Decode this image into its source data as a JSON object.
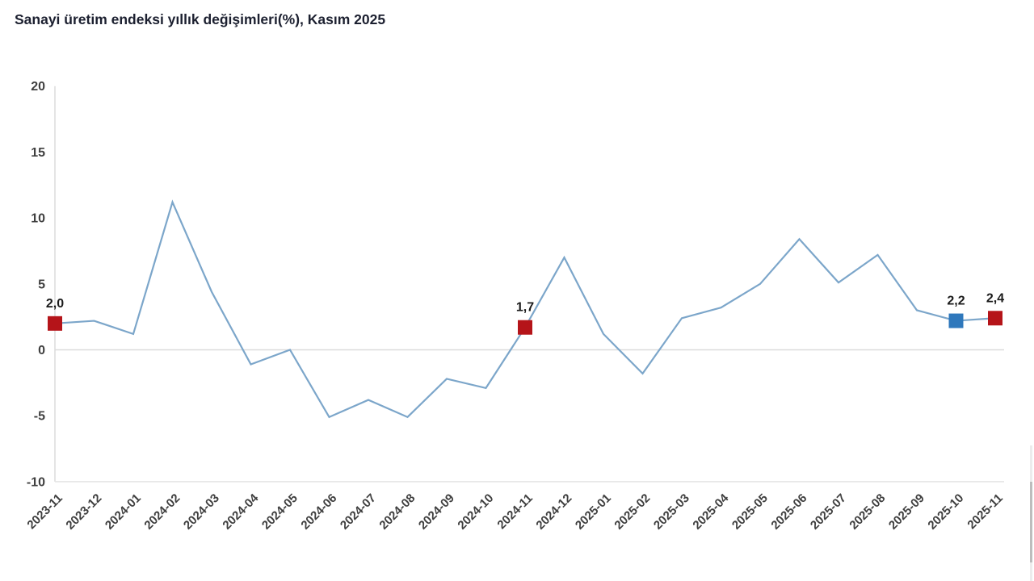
{
  "title": "Sanayi üretim endeksi yıllık değişimleri(%), Kasım 2025",
  "chart_data": {
    "type": "line",
    "title": "Sanayi üretim endeksi yıllık değişimleri(%), Kasım 2025",
    "categories": [
      "2023-11",
      "2023-12",
      "2024-01",
      "2024-02",
      "2024-03",
      "2024-04",
      "2024-05",
      "2024-06",
      "2024-07",
      "2024-08",
      "2024-09",
      "2024-10",
      "2024-11",
      "2024-12",
      "2025-01",
      "2025-02",
      "2025-03",
      "2025-04",
      "2025-05",
      "2025-06",
      "2025-07",
      "2025-08",
      "2025-09",
      "2025-10",
      "2025-11"
    ],
    "values": [
      2.0,
      2.2,
      1.2,
      11.2,
      4.4,
      -1.1,
      0.0,
      -5.1,
      -3.8,
      -5.1,
      -2.2,
      -2.9,
      1.7,
      7.0,
      1.2,
      -1.8,
      2.4,
      3.2,
      5.0,
      8.4,
      5.1,
      7.2,
      3.0,
      2.2,
      2.4
    ],
    "y_ticks": [
      20,
      15,
      10,
      5,
      0,
      -5,
      -10
    ],
    "ylim": [
      -10,
      20
    ],
    "xlabel": "",
    "ylabel": "",
    "legend": "none",
    "grid": "zero-line-only",
    "x_label_rotation_deg": -45,
    "line_color": "#7ca6ca",
    "axis_color": "#dcdcdc",
    "tick_label_color": "#3f3f3f",
    "data_label_color": "#1a1a1a",
    "annotated_points": [
      {
        "category": "2023-11",
        "value": 2.0,
        "label": "2,0",
        "marker": "square",
        "marker_color": "#b51419"
      },
      {
        "category": "2024-11",
        "value": 1.7,
        "label": "1,7",
        "marker": "square",
        "marker_color": "#b51419"
      },
      {
        "category": "2025-10",
        "value": 2.2,
        "label": "2,2",
        "marker": "square",
        "marker_color": "#2f78bc"
      },
      {
        "category": "2025-11",
        "value": 2.4,
        "label": "2,4",
        "marker": "square",
        "marker_color": "#b51419"
      }
    ]
  }
}
